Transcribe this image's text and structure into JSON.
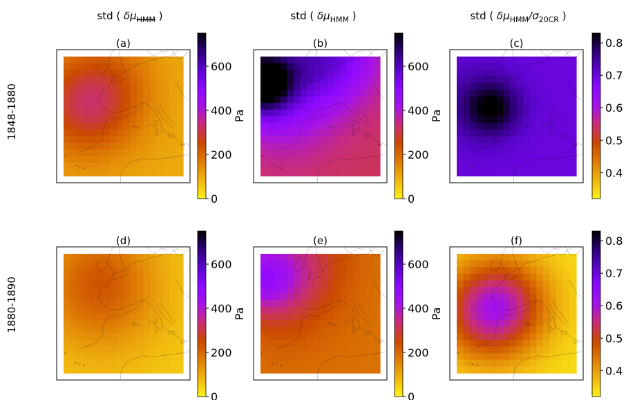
{
  "columns": [
    {
      "prefix": "std ( ",
      "sym": "δμ",
      "sub": "HMM",
      "suffix": " )",
      "strike": true,
      "div": false
    },
    {
      "prefix": "std ( ",
      "sym": "δμ",
      "sub": "HMM",
      "suffix": " )",
      "strike": false,
      "div": false
    },
    {
      "prefix": "std ( ",
      "sym": "δμ",
      "sub": "HMM",
      "div": true,
      "divsym": "/σ",
      "divsub": "20CR",
      "suffix": " )",
      "strike": false
    }
  ],
  "rows": [
    "1848-1880",
    "1880-1890"
  ],
  "colors": {
    "cmap": [
      "#fcf218",
      "#f0b50f",
      "#df7d05",
      "#ca4a00",
      "#c92e73",
      "#a613e6",
      "#8c09ff",
      "#5c05ce",
      "#2e007a",
      "#000000"
    ]
  },
  "chart_data": [
    {
      "type": "heatmap",
      "panel": "(a)",
      "unit": "Pa",
      "vmin": 0,
      "vmax": 750,
      "ticks": [
        "0",
        "200",
        "400",
        "600"
      ],
      "tick_values": [
        0,
        200,
        400,
        600
      ],
      "field": {
        "base": 100,
        "blobs": [
          [
            0.2,
            0.4,
            0.3,
            210
          ],
          [
            0.45,
            0.15,
            0.25,
            40
          ]
        ]
      }
    },
    {
      "type": "heatmap",
      "panel": "(b)",
      "unit": "Pa",
      "vmin": 0,
      "vmax": 750,
      "ticks": [
        "0",
        "200",
        "400",
        "600"
      ],
      "tick_values": [
        0,
        200,
        400,
        600
      ],
      "field": {
        "base": 315,
        "blobs": [
          [
            0.0,
            0.22,
            0.18,
            420
          ],
          [
            0.3,
            0.05,
            0.35,
            200
          ],
          [
            0.65,
            0.0,
            0.25,
            120
          ],
          [
            0.15,
            0.5,
            0.3,
            60
          ]
        ]
      }
    },
    {
      "type": "heatmap",
      "panel": "(c)",
      "unit": "",
      "vmin": 0.32,
      "vmax": 0.83,
      "ticks": [
        "0.4",
        "0.5",
        "0.6",
        "0.7",
        "0.8"
      ],
      "tick_values": [
        0.4,
        0.5,
        0.6,
        0.7,
        0.8
      ],
      "field": {
        "base": 0.7,
        "blobs": [
          [
            0.3,
            0.43,
            0.16,
            0.11
          ],
          [
            0.12,
            0.4,
            0.25,
            0.04
          ]
        ]
      }
    },
    {
      "type": "heatmap",
      "panel": "(d)",
      "unit": "Pa",
      "vmin": 0,
      "vmax": 750,
      "ticks": [
        "0",
        "200",
        "400",
        "600"
      ],
      "tick_values": [
        0,
        200,
        400,
        600
      ],
      "field": {
        "base": 55,
        "blobs": [
          [
            0.3,
            0.35,
            0.35,
            130
          ],
          [
            0.3,
            0.1,
            0.3,
            60
          ]
        ]
      }
    },
    {
      "type": "heatmap",
      "panel": "(e)",
      "unit": "Pa",
      "vmin": 0,
      "vmax": 750,
      "ticks": [
        "0",
        "200",
        "400",
        "600"
      ],
      "tick_values": [
        0,
        200,
        400,
        600
      ],
      "field": {
        "base": 185,
        "blobs": [
          [
            0.0,
            0.2,
            0.2,
            200
          ],
          [
            0.3,
            0.05,
            0.3,
            120
          ],
          [
            0.2,
            0.45,
            0.3,
            50
          ]
        ]
      }
    },
    {
      "type": "heatmap",
      "panel": "(f)",
      "unit": "",
      "vmin": 0.32,
      "vmax": 0.83,
      "ticks": [
        "0.4",
        "0.5",
        "0.6",
        "0.7",
        "0.8"
      ],
      "tick_values": [
        0.4,
        0.5,
        0.6,
        0.7,
        0.8
      ],
      "field": {
        "base": 0.34,
        "blobs": [
          [
            0.28,
            0.48,
            0.28,
            0.24
          ],
          [
            0.5,
            0.35,
            0.25,
            0.05
          ]
        ]
      }
    }
  ]
}
